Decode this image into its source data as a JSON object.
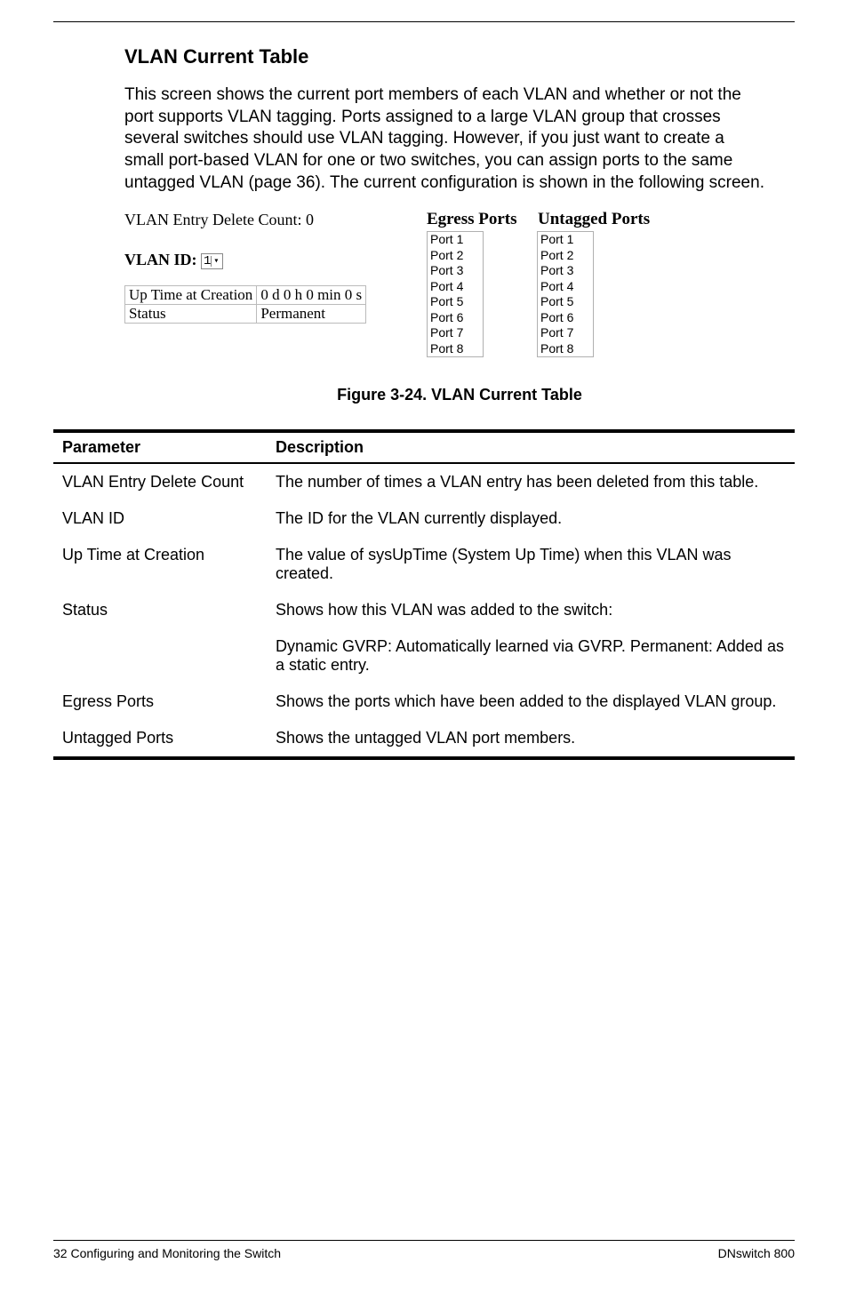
{
  "section_title": "VLAN Current Table",
  "body_text": "This screen shows the current port members of each VLAN and whether or not the port supports VLAN tagging. Ports assigned to a large VLAN group that crosses several switches should use VLAN tagging. However, if you just want to create a small port-based VLAN for one or two switches, you can assign ports to the same untagged VLAN (page 36). The current configuration is shown in the following screen.",
  "screenshot": {
    "delete_count_label": "VLAN Entry Delete Count: 0",
    "egress_header": "Egress Ports",
    "untagged_header": "Untagged Ports",
    "vlan_id_label": "VLAN ID:",
    "vlan_id_value": "1",
    "uptime_label": "Up Time at Creation",
    "uptime_value": "0 d 0 h 0 min 0 s",
    "status_label": "Status",
    "status_value": "Permanent",
    "egress_ports": [
      "Port 1",
      "Port 2",
      "Port 3",
      "Port 4",
      "Port 5",
      "Port 6",
      "Port 7",
      "Port 8"
    ],
    "untagged_ports": [
      "Port 1",
      "Port 2",
      "Port 3",
      "Port 4",
      "Port 5",
      "Port 6",
      "Port 7",
      "Port 8"
    ]
  },
  "figure_caption": "Figure 3-24.  VLAN Current Table",
  "param_table": {
    "headers": {
      "param": "Parameter",
      "desc": "Description"
    },
    "rows": [
      {
        "param": "VLAN Entry Delete Count",
        "desc": "The number of times a VLAN entry has been deleted from this table."
      },
      {
        "param": "VLAN ID",
        "desc": "The ID for the VLAN currently displayed."
      },
      {
        "param": "Up Time at Creation",
        "desc": "The value of sysUpTime (System Up Time) when this VLAN was created."
      },
      {
        "param": "Status",
        "desc": "Shows how this VLAN was added to the switch:"
      },
      {
        "param": "",
        "desc": "Dynamic GVRP: Automatically learned via GVRP. Permanent: Added as a static entry."
      },
      {
        "param": "Egress Ports",
        "desc": "Shows the ports which have been added to the displayed VLAN group."
      },
      {
        "param": "Untagged Ports",
        "desc": "Shows the untagged VLAN port members."
      }
    ]
  },
  "footer": {
    "left": "32  Configuring and Monitoring the Switch",
    "right": "DNswitch 800"
  }
}
